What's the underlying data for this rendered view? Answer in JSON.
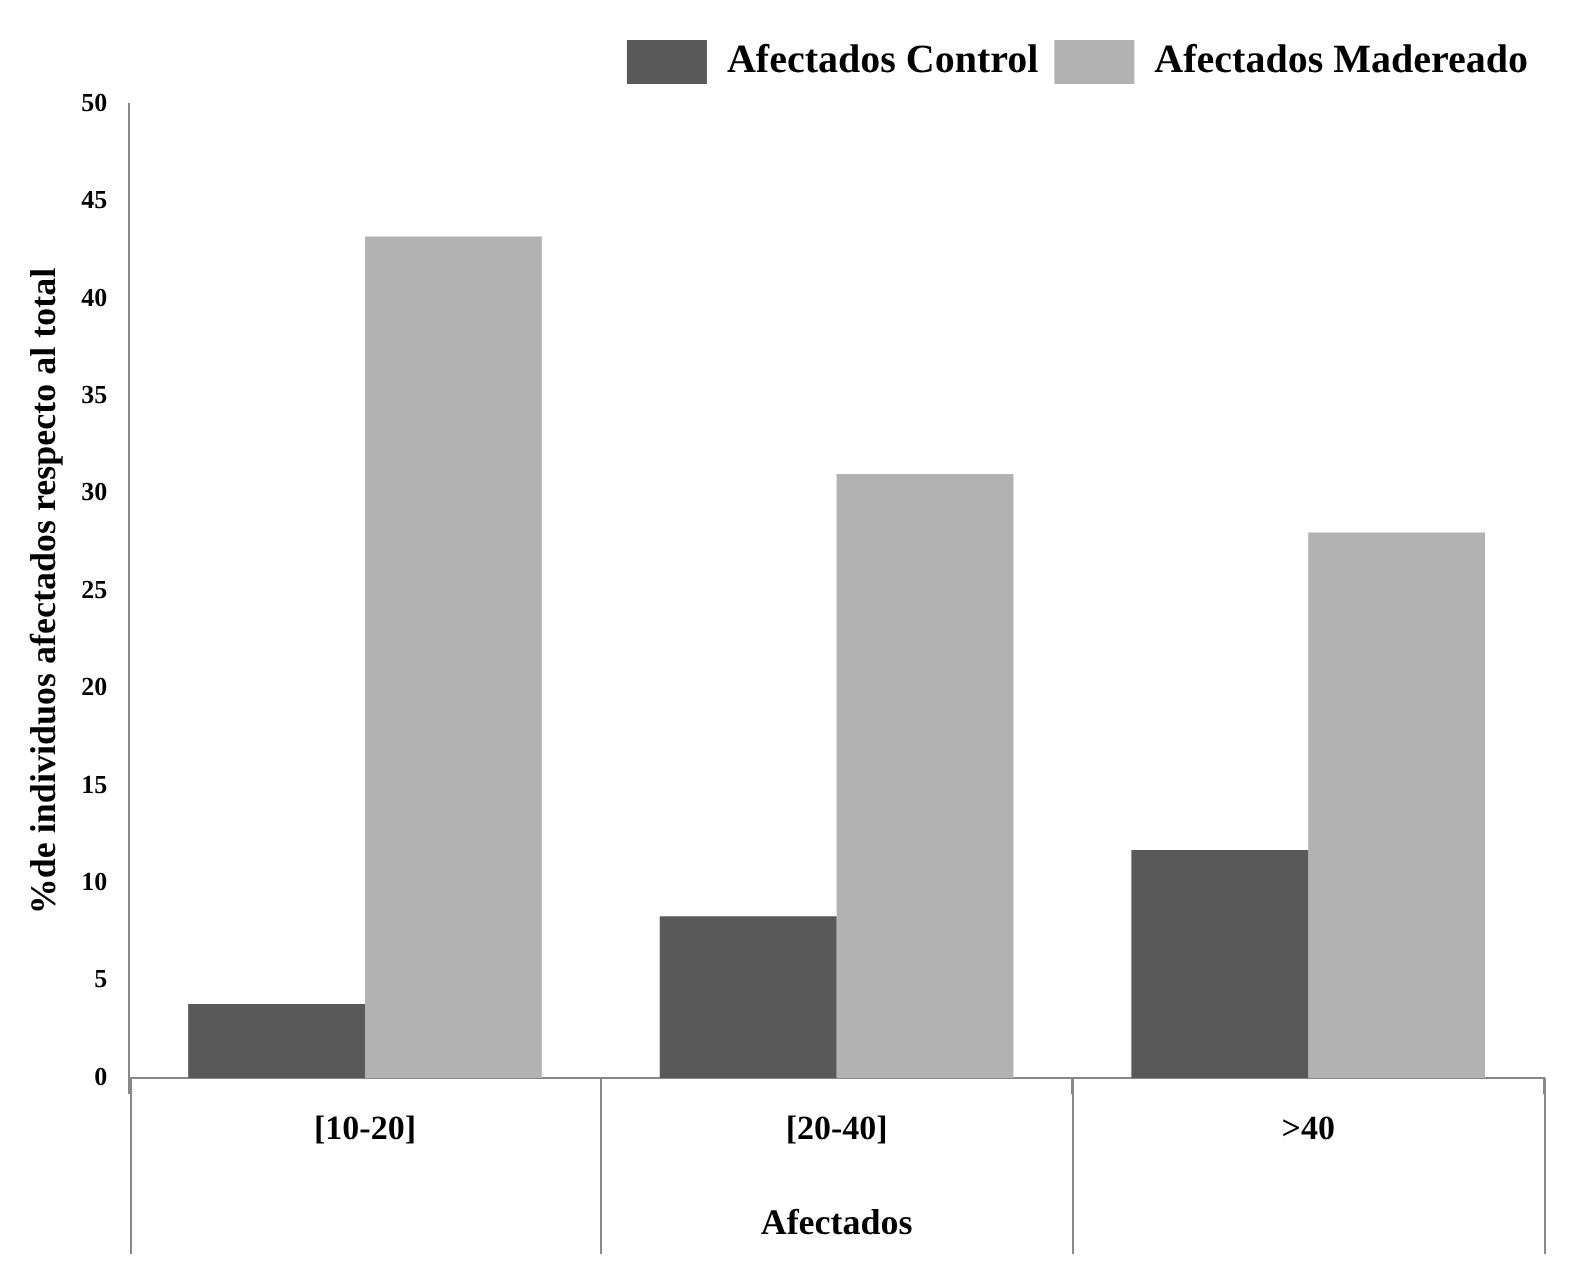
{
  "chart_data": {
    "type": "bar",
    "xlabel": "Afectados",
    "ylabel": "%de individuos afectados respecto al total",
    "categories": [
      "[10-20]",
      "[20-40]",
      ">40"
    ],
    "series": [
      {
        "name": "Afectados Control",
        "color": "#595959",
        "values": [
          3.8,
          8.3,
          11.7
        ]
      },
      {
        "name": "Afectados Madereado",
        "color": "#b2b2b2",
        "values": [
          43.2,
          31,
          28
        ]
      }
    ],
    "ylim": [
      0,
      50
    ],
    "yticks": [
      0,
      5,
      10,
      15,
      20,
      25,
      30,
      35,
      40,
      45,
      50
    ],
    "grid": false,
    "legend": "top right"
  }
}
